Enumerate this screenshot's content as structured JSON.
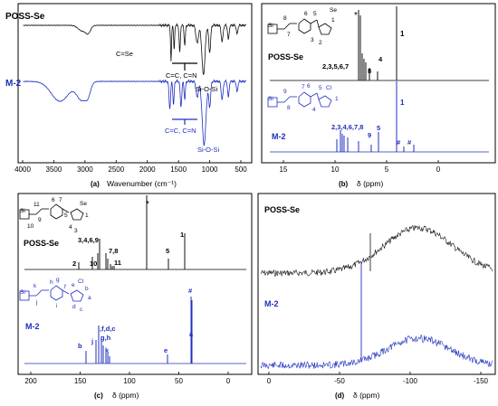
{
  "colors": {
    "black": "#111111",
    "blue": "#1f2fbf"
  },
  "panel_a": {
    "label": "(a)",
    "xlabel": "Wavenumber (cm⁻¹)",
    "series_top": "POSS-Se",
    "series_bottom": "M-2",
    "annotations_top": [
      "C=Se",
      "C=C, C=N",
      "Si-O-Si"
    ],
    "annotations_bottom": [
      "C=C, C=N",
      "Si-O-Si"
    ],
    "xticks": [
      "4000",
      "3500",
      "3000",
      "2500",
      "2000",
      "1500",
      "1000",
      "500"
    ]
  },
  "panel_b": {
    "label": "(b)",
    "xlabel": "δ (ppm)",
    "series_top": "POSS-Se",
    "series_bottom": "M-2",
    "star": "*",
    "top_labels": [
      "1",
      "2,3,5,6,7",
      "8",
      "4"
    ],
    "bottom_labels": [
      "1",
      "2,3,4,6,7,8",
      "9",
      "5",
      "#",
      "#"
    ],
    "xticks": [
      "15",
      "10",
      "5",
      "0"
    ]
  },
  "panel_c": {
    "label": "(c)",
    "xlabel": "δ (ppm)",
    "series_top": "POSS-Se",
    "series_bottom": "M-2",
    "star": "*",
    "top_labels": [
      "1",
      "3,4,6,9",
      "2",
      "10",
      "7,8",
      "11",
      "5"
    ],
    "bottom_labels": [
      "#",
      "i,f,d,c",
      "g,h",
      "j",
      "k",
      "b",
      "e",
      "a"
    ],
    "xticks": [
      "200",
      "150",
      "100",
      "50",
      "0"
    ]
  },
  "panel_d": {
    "label": "(d)",
    "xlabel": "δ (ppm)",
    "series_top": "POSS-Se",
    "series_bottom": "M-2",
    "xticks": [
      "0",
      "-50",
      "-100",
      "-150"
    ]
  },
  "chart_data": [
    {
      "type": "line",
      "panel": "a",
      "xlabel": "Wavenumber (cm⁻¹)",
      "xlim": [
        4000,
        400
      ],
      "series": [
        {
          "name": "POSS-Se"
        },
        {
          "name": "M-2"
        }
      ]
    },
    {
      "type": "line",
      "panel": "b",
      "xlabel": "δ (ppm)",
      "xlim": [
        16,
        -4
      ],
      "series": [
        {
          "name": "POSS-Se"
        },
        {
          "name": "M-2"
        }
      ]
    },
    {
      "type": "line",
      "panel": "c",
      "xlabel": "δ (ppm)",
      "xlim": [
        220,
        -15
      ],
      "series": [
        {
          "name": "POSS-Se"
        },
        {
          "name": "M-2"
        }
      ]
    },
    {
      "type": "line",
      "panel": "d",
      "xlabel": "δ (ppm)",
      "xlim": [
        25,
        -150
      ],
      "series": [
        {
          "name": "POSS-Se"
        },
        {
          "name": "M-2"
        }
      ]
    }
  ]
}
